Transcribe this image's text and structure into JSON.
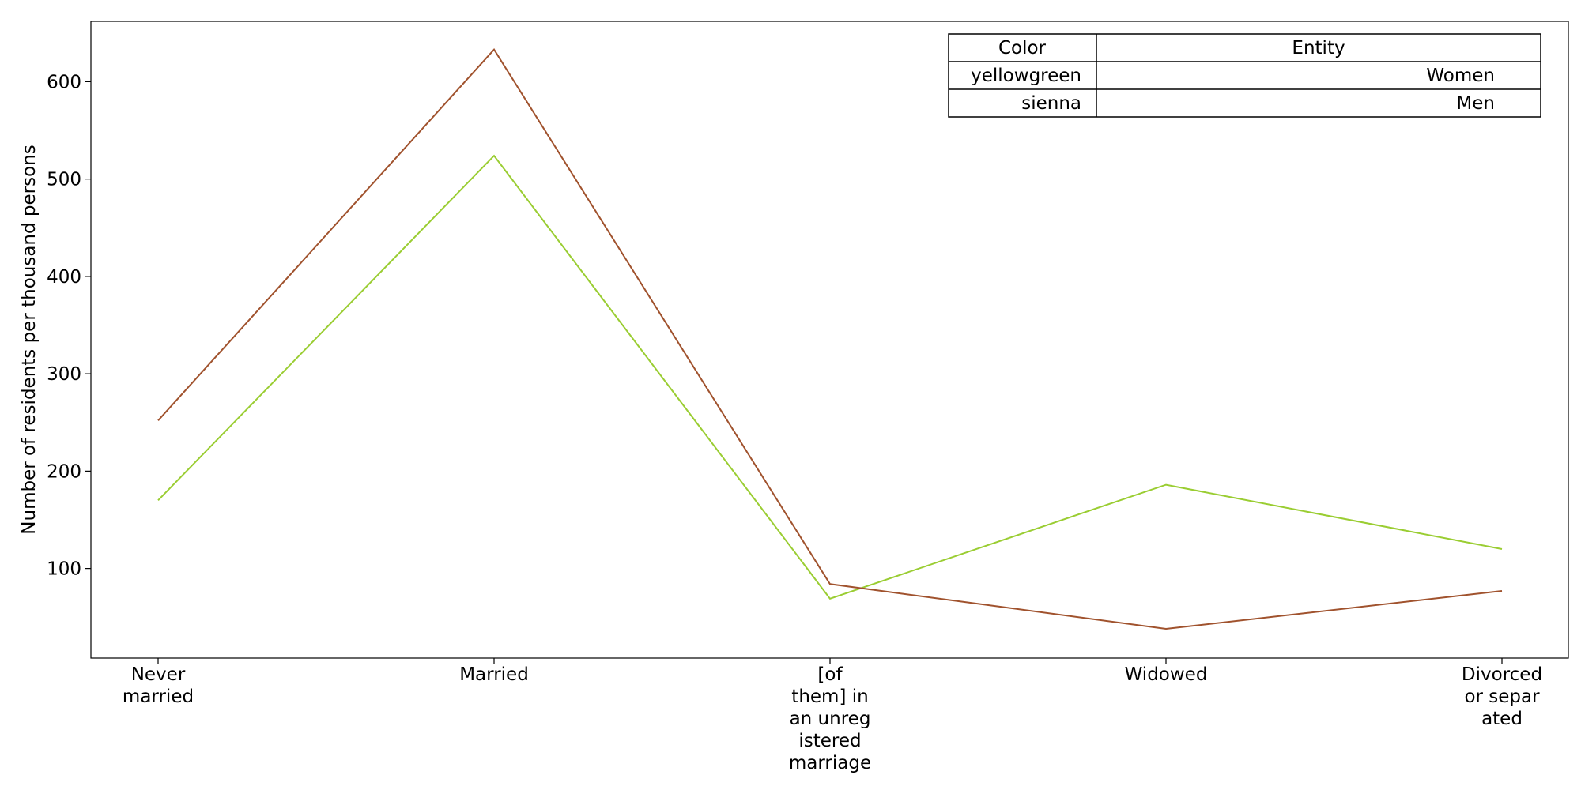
{
  "chart_data": {
    "type": "line",
    "title": "",
    "xlabel": "",
    "ylabel": "Number of residents per thousand persons",
    "categories": [
      "Never married",
      "Married",
      "[of them] in an unregistered marriage",
      "Widowed",
      "Divorced or separated"
    ],
    "category_label_lines": [
      [
        "Never",
        "married"
      ],
      [
        "Married"
      ],
      [
        "[of",
        "them] in",
        "an unreg",
        "istered",
        "marriage"
      ],
      [
        "Widowed"
      ],
      [
        "Divorced",
        "or separ",
        "ated"
      ]
    ],
    "ylim": [
      8,
      662
    ],
    "yticks": [
      100,
      200,
      300,
      400,
      500,
      600
    ],
    "grid": false,
    "series": [
      {
        "name": "Women",
        "color": "#9acd32",
        "values": [
          170,
          524,
          69,
          186,
          120
        ]
      },
      {
        "name": "Men",
        "color": "#a0522d",
        "values": [
          252,
          633,
          84,
          38,
          77
        ]
      }
    ],
    "legend": {
      "placement": "top-right",
      "headers": [
        "Color",
        "Entity"
      ],
      "rows": [
        {
          "color": "yellowgreen",
          "entity": "Women"
        },
        {
          "color": "sienna",
          "entity": "Men"
        }
      ]
    }
  }
}
